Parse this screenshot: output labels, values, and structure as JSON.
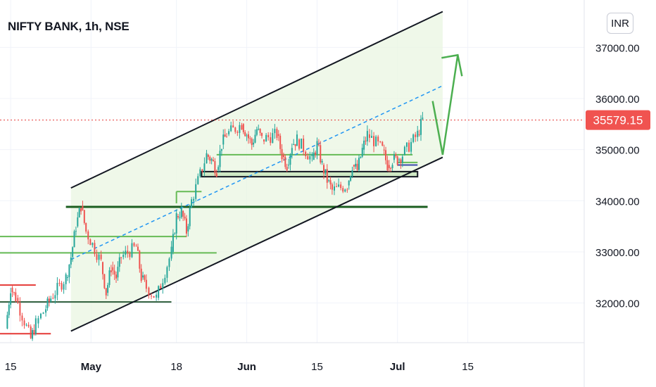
{
  "header": {
    "title": "NIFTY BANK, 1h, NSE",
    "currency": "INR"
  },
  "price": {
    "last": 35579.15,
    "last_label": "35579.15",
    "last_color": "#f05350"
  },
  "colors": {
    "up": "#26a69a",
    "down": "#ef5350",
    "channel_line": "#131722",
    "channel_fill": "#e8f5e0",
    "midline": "#2196f3",
    "support_green": "#66bb55",
    "dark_green": "#1b5e20",
    "arrow_green": "#4caf50",
    "red_level": "#e53935",
    "grid": "#f0f3fa",
    "axis_text": "#131722"
  },
  "chart_data": {
    "type": "line",
    "title": "NIFTY BANK, 1h, NSE",
    "xlabel": "",
    "ylabel": "",
    "x_ticks": [
      "15",
      "May",
      "18",
      "Jun",
      "15",
      "Jul",
      "15"
    ],
    "y_ticks": [
      "32000.00",
      "33000.00",
      "34000.00",
      "35000.00",
      "36000.00",
      "37000.00"
    ],
    "ylim": [
      31400,
      37700
    ],
    "x_range": [
      "2021-04-14",
      "2021-07-25"
    ],
    "series": [
      {
        "values": [
          [
            "2021-04-14",
            31500
          ],
          [
            "2021-04-15",
            32300
          ],
          [
            "2021-04-16",
            32100
          ],
          [
            "2021-04-19",
            31300
          ],
          [
            "2021-04-20",
            31600
          ],
          [
            "2021-04-22",
            31900
          ],
          [
            "2021-04-23",
            32100
          ],
          [
            "2021-04-26",
            32500
          ],
          [
            "2021-04-27",
            32900
          ],
          [
            "2021-04-28",
            33500
          ],
          [
            "2021-04-29",
            33900
          ],
          [
            "2021-04-30",
            33400
          ],
          [
            "2021-05-03",
            32800
          ],
          [
            "2021-05-04",
            32200
          ],
          [
            "2021-05-05",
            32700
          ],
          [
            "2021-05-06",
            32500
          ],
          [
            "2021-05-07",
            32900
          ],
          [
            "2021-05-10",
            33100
          ],
          [
            "2021-05-11",
            32500
          ],
          [
            "2021-05-12",
            32300
          ],
          [
            "2021-05-14",
            32100
          ],
          [
            "2021-05-17",
            33000
          ],
          [
            "2021-05-18",
            33700
          ],
          [
            "2021-05-19",
            33800
          ],
          [
            "2021-05-20",
            33400
          ],
          [
            "2021-05-21",
            34000
          ],
          [
            "2021-05-24",
            34900
          ],
          [
            "2021-05-25",
            34800
          ],
          [
            "2021-05-26",
            34600
          ],
          [
            "2021-05-27",
            35100
          ],
          [
            "2021-05-28",
            35300
          ],
          [
            "2021-05-31",
            35500
          ],
          [
            "2021-06-01",
            35300
          ],
          [
            "2021-06-02",
            35100
          ],
          [
            "2021-06-03",
            35400
          ],
          [
            "2021-06-04",
            35200
          ],
          [
            "2021-06-07",
            35300
          ],
          [
            "2021-06-08",
            34900
          ],
          [
            "2021-06-09",
            34700
          ],
          [
            "2021-06-10",
            35100
          ],
          [
            "2021-06-11",
            35200
          ],
          [
            "2021-06-14",
            34800
          ],
          [
            "2021-06-15",
            35100
          ],
          [
            "2021-06-16",
            34700
          ],
          [
            "2021-06-17",
            34400
          ],
          [
            "2021-06-18",
            34200
          ],
          [
            "2021-06-21",
            34300
          ],
          [
            "2021-06-22",
            34700
          ],
          [
            "2021-06-23",
            34600
          ],
          [
            "2021-06-24",
            35000
          ],
          [
            "2021-06-25",
            35300
          ],
          [
            "2021-06-28",
            35000
          ],
          [
            "2021-06-29",
            34700
          ],
          [
            "2021-06-30",
            34800
          ],
          [
            "2021-07-01",
            34800
          ],
          [
            "2021-07-02",
            34900
          ],
          [
            "2021-07-05",
            35300
          ],
          [
            "2021-07-06",
            35579.15
          ]
        ]
      }
    ],
    "annotations": {
      "channel_upper": [
        [
          "2021-04-27",
          34250
        ],
        [
          "2021-07-10",
          37700
        ]
      ],
      "channel_lower": [
        [
          "2021-04-27",
          31450
        ],
        [
          "2021-07-10",
          34850
        ]
      ],
      "channel_mid": [
        [
          "2021-04-27",
          32850
        ],
        [
          "2021-07-10",
          36250
        ]
      ],
      "dark_support": [
        [
          "2021-04-26",
          33880
        ],
        [
          "2021-07-07",
          33880
        ]
      ],
      "support_box": [
        [
          "2021-05-23",
          34470
        ],
        [
          "2021-07-05",
          34570
        ]
      ],
      "lower_green_line": [
        [
          "2021-04-09",
          32020
        ],
        [
          "2021-05-17",
          32020
        ]
      ],
      "projection_arrow": [
        [
          "2021-07-08",
          35950
        ],
        [
          "2021-07-10",
          34900
        ],
        [
          "2021-07-13",
          36850
        ]
      ]
    }
  }
}
